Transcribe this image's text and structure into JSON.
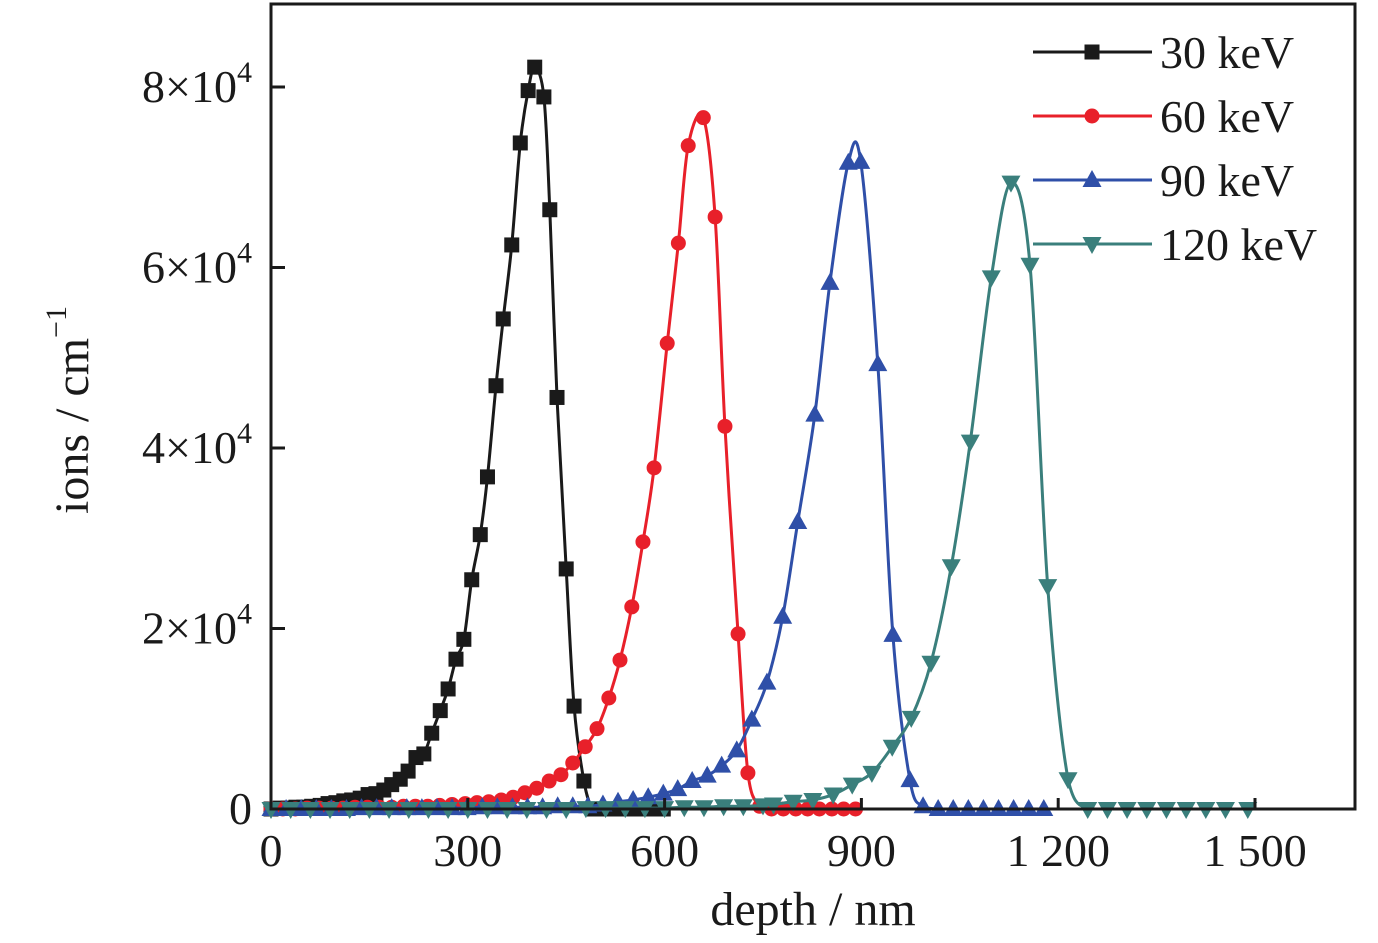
{
  "chart_data": {
    "type": "line",
    "title": "",
    "xlabel": "depth / nm",
    "ylabel": "ions / cm",
    "ylabel_sup": "−1",
    "xlim": [
      0,
      1650
    ],
    "ylim": [
      0,
      88500
    ],
    "x_ticks": [
      0,
      300,
      600,
      900,
      1200,
      1500
    ],
    "x_tick_labels": [
      "0",
      "300",
      "600",
      "900",
      "1 200",
      "1 500"
    ],
    "y_ticks": [
      0,
      20000,
      40000,
      60000,
      80000
    ],
    "y_tick_labels": [
      {
        "base": "0",
        "exp": ""
      },
      {
        "base": "2×10",
        "exp": "4"
      },
      {
        "base": "4×10",
        "exp": "4"
      },
      {
        "base": "6×10",
        "exp": "4"
      },
      {
        "base": "8×10",
        "exp": "4"
      }
    ],
    "grid": false,
    "legend_position": "top-right",
    "series": [
      {
        "name": "30 keV",
        "color": "#1a1a1a",
        "marker": "square",
        "x": [
          0,
          14,
          26,
          38,
          50,
          62,
          75,
          87,
          99,
          111,
          123,
          136,
          148,
          160,
          172,
          184,
          197,
          209,
          221,
          233,
          245,
          258,
          270,
          282,
          294,
          306,
          319,
          330,
          343,
          354,
          367,
          380,
          392,
          402,
          416,
          425,
          436,
          450,
          462,
          477,
          490,
          502,
          514,
          526,
          538,
          550,
          562,
          574,
          586,
          598
        ],
        "y": [
          0,
          100,
          100,
          200,
          200,
          300,
          400,
          600,
          700,
          900,
          1000,
          1200,
          1600,
          1700,
          2100,
          2700,
          3300,
          4200,
          5700,
          6100,
          8400,
          10900,
          13300,
          16600,
          18800,
          25400,
          30400,
          36800,
          46900,
          54300,
          62500,
          73800,
          79600,
          82200,
          78900,
          66400,
          45600,
          26600,
          11400,
          3100,
          0,
          0,
          0,
          0,
          0,
          0,
          0,
          0,
          0,
          0
        ]
      },
      {
        "name": "60 keV",
        "color": "#e8202a",
        "marker": "circle",
        "x": [
          0,
          18,
          37,
          55,
          73,
          92,
          110,
          128,
          147,
          165,
          184,
          202,
          220,
          239,
          257,
          276,
          296,
          314,
          332,
          351,
          369,
          387,
          405,
          424,
          442,
          460,
          479,
          497,
          515,
          532,
          550,
          567,
          584,
          604,
          621,
          636,
          659,
          677,
          692,
          712,
          727,
          745,
          763,
          781,
          800,
          818,
          836,
          855,
          873,
          891
        ],
        "y": [
          0,
          0,
          0,
          100,
          100,
          100,
          100,
          200,
          200,
          200,
          200,
          300,
          300,
          300,
          400,
          500,
          600,
          700,
          800,
          1000,
          1300,
          1800,
          2300,
          3100,
          3800,
          5100,
          6900,
          8900,
          12300,
          16500,
          22400,
          29600,
          37800,
          51600,
          62700,
          73500,
          76600,
          65600,
          42400,
          19400,
          4000,
          300,
          0,
          0,
          0,
          0,
          0,
          0,
          0,
          0
        ]
      },
      {
        "name": "90 keV",
        "color": "#2f4fa8",
        "marker": "triangle-up",
        "x": [
          0,
          23,
          46,
          69,
          92,
          115,
          138,
          161,
          184,
          207,
          230,
          253,
          276,
          299,
          322,
          345,
          368,
          391,
          414,
          437,
          460,
          483,
          506,
          529,
          552,
          575,
          598,
          620,
          642,
          665,
          687,
          710,
          733,
          756,
          780,
          803,
          829,
          852,
          880,
          899,
          925,
          948,
          974,
          994,
          1017,
          1040,
          1063,
          1086,
          1109,
          1132,
          1155,
          1178
        ],
        "y": [
          0,
          0,
          0,
          0,
          0,
          0,
          100,
          100,
          100,
          100,
          100,
          100,
          100,
          100,
          200,
          200,
          200,
          200,
          200,
          300,
          300,
          300,
          500,
          800,
          1000,
          1300,
          1700,
          2200,
          3100,
          3700,
          4800,
          6500,
          9900,
          14000,
          21300,
          31800,
          43700,
          58300,
          71600,
          71700,
          49300,
          19300,
          3200,
          300,
          0,
          0,
          0,
          0,
          0,
          0,
          0,
          0
        ]
      },
      {
        "name": "120 keV",
        "color": "#3a7f7c",
        "marker": "triangle-down",
        "x": [
          0,
          30,
          60,
          90,
          120,
          150,
          180,
          210,
          240,
          270,
          300,
          330,
          360,
          390,
          420,
          450,
          480,
          510,
          540,
          570,
          600,
          630,
          660,
          690,
          720,
          750,
          766,
          796,
          826,
          857,
          886,
          916,
          947,
          976,
          1006,
          1037,
          1066,
          1098,
          1128,
          1157,
          1184,
          1215,
          1245,
          1275,
          1305,
          1335,
          1365,
          1395,
          1425,
          1455,
          1489
        ],
        "y": [
          0,
          0,
          0,
          0,
          0,
          0,
          0,
          0,
          0,
          0,
          0,
          0,
          0,
          0,
          0,
          0,
          100,
          100,
          100,
          100,
          100,
          200,
          200,
          300,
          300,
          400,
          500,
          800,
          1000,
          1600,
          2700,
          4000,
          6900,
          10100,
          16200,
          26900,
          40700,
          58900,
          69400,
          60300,
          24700,
          3300,
          0,
          0,
          0,
          0,
          0,
          0,
          0,
          0,
          0
        ]
      }
    ]
  }
}
